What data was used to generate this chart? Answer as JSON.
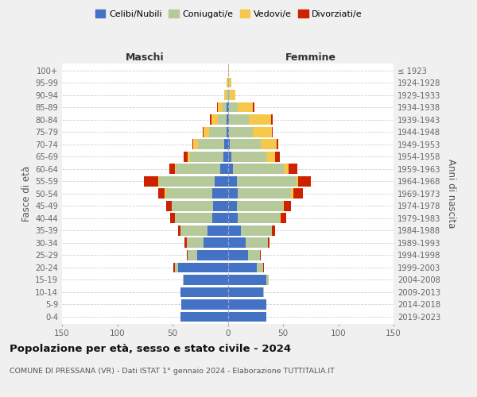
{
  "age_groups": [
    "0-4",
    "5-9",
    "10-14",
    "15-19",
    "20-24",
    "25-29",
    "30-34",
    "35-39",
    "40-44",
    "45-49",
    "50-54",
    "55-59",
    "60-64",
    "65-69",
    "70-74",
    "75-79",
    "80-84",
    "85-89",
    "90-94",
    "95-99",
    "100+"
  ],
  "birth_years": [
    "2019-2023",
    "2014-2018",
    "2009-2013",
    "2004-2008",
    "1999-2003",
    "1994-1998",
    "1989-1993",
    "1984-1988",
    "1979-1983",
    "1974-1978",
    "1969-1973",
    "1964-1968",
    "1959-1963",
    "1954-1958",
    "1949-1953",
    "1944-1948",
    "1939-1943",
    "1934-1938",
    "1929-1933",
    "1924-1928",
    "≤ 1923"
  ],
  "colors": {
    "celibe": "#4472c4",
    "coniugato": "#b5c99a",
    "vedovo": "#f5c84c",
    "divorziato": "#cc2200"
  },
  "legend_labels": [
    "Celibi/Nubili",
    "Coniugati/e",
    "Vedovi/e",
    "Divorziati/e"
  ],
  "legend_colors": [
    "#4472c4",
    "#b5c99a",
    "#f5c84c",
    "#cc2200"
  ],
  "males": {
    "celibe": [
      43,
      42,
      43,
      40,
      45,
      28,
      22,
      18,
      14,
      13,
      14,
      12,
      7,
      4,
      3,
      1,
      1,
      1,
      0,
      0,
      0
    ],
    "coniugato": [
      0,
      0,
      0,
      1,
      3,
      8,
      15,
      25,
      34,
      38,
      42,
      50,
      40,
      30,
      24,
      16,
      8,
      4,
      1,
      0,
      0
    ],
    "vedovo": [
      0,
      0,
      0,
      0,
      0,
      0,
      0,
      0,
      0,
      0,
      1,
      1,
      1,
      2,
      4,
      5,
      6,
      4,
      2,
      1,
      0
    ],
    "divorziato": [
      0,
      0,
      0,
      0,
      1,
      1,
      2,
      2,
      4,
      5,
      6,
      13,
      5,
      4,
      1,
      1,
      1,
      1,
      0,
      0,
      0
    ]
  },
  "females": {
    "celibe": [
      35,
      35,
      32,
      35,
      26,
      18,
      16,
      12,
      9,
      8,
      9,
      8,
      5,
      3,
      2,
      1,
      1,
      1,
      0,
      0,
      0
    ],
    "coniugato": [
      0,
      0,
      1,
      2,
      6,
      11,
      20,
      28,
      38,
      42,
      48,
      54,
      46,
      32,
      28,
      22,
      18,
      8,
      2,
      1,
      0
    ],
    "vedovo": [
      0,
      0,
      0,
      0,
      0,
      0,
      0,
      0,
      1,
      1,
      2,
      2,
      4,
      8,
      14,
      17,
      20,
      14,
      5,
      2,
      1
    ],
    "divorziato": [
      0,
      0,
      0,
      0,
      1,
      1,
      2,
      3,
      5,
      6,
      9,
      11,
      8,
      4,
      2,
      1,
      2,
      1,
      0,
      0,
      0
    ]
  },
  "title": "Popolazione per età, sesso e stato civile - 2024",
  "subtitle": "COMUNE DI PRESSANA (VR) - Dati ISTAT 1° gennaio 2024 - Elaborazione TUTTITALIA.IT",
  "xlabel_left": "Maschi",
  "xlabel_right": "Femmine",
  "ylabel_left": "Fasce di età",
  "ylabel_right": "Anni di nascita",
  "xlim": 150,
  "bg_color": "#f0f0f0",
  "plot_bg": "#ffffff",
  "grid_color": "#cccccc"
}
